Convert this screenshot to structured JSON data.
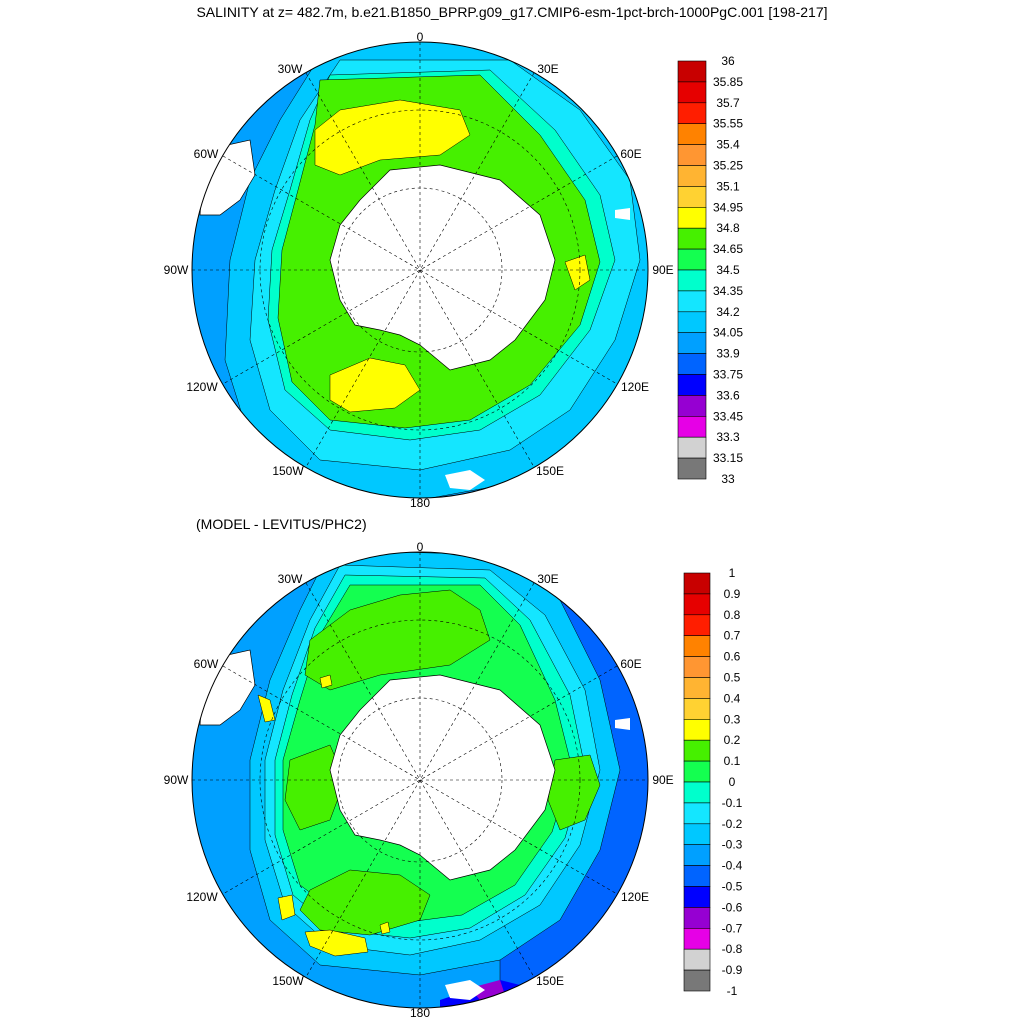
{
  "title": "SALINITY at z= 482.7m, b.e21.B1850_BPRP.g09_g17.CMIP6-esm-1pct-brch-1000PgC.001 [198-217]",
  "subtitle": "(MODEL - LEVITUS/PHC2)",
  "map_labels": {
    "lon_0": "0",
    "lon_30w": "30W",
    "lon_30e": "30E",
    "lon_60w": "60W",
    "lon_60e": "60E",
    "lon_90w": "90W",
    "lon_90e": "90E",
    "lon_120w": "120W",
    "lon_120e": "120E",
    "lon_150w": "150W",
    "lon_150e": "150E",
    "lon_180": "180"
  },
  "top_colorbar": {
    "labels": [
      "36",
      "35.85",
      "35.7",
      "35.55",
      "35.4",
      "35.25",
      "35.1",
      "34.95",
      "34.8",
      "34.65",
      "34.5",
      "34.35",
      "34.2",
      "34.05",
      "33.9",
      "33.75",
      "33.6",
      "33.45",
      "33.3",
      "33.15",
      "33"
    ],
    "colors": [
      "#c80000",
      "#e60000",
      "#ff1e00",
      "#ff8200",
      "#ff9632",
      "#ffb432",
      "#ffd232",
      "#ffff00",
      "#46f000",
      "#14ff50",
      "#00ffcc",
      "#14e6ff",
      "#00c8ff",
      "#00a0ff",
      "#0064ff",
      "#0000ff",
      "#9600d2",
      "#e600e6",
      "#d2d2d2",
      "#787878"
    ]
  },
  "bottom_colorbar": {
    "labels": [
      "1",
      "0.9",
      "0.8",
      "0.7",
      "0.6",
      "0.5",
      "0.4",
      "0.3",
      "0.2",
      "0.1",
      "0",
      "-0.1",
      "-0.2",
      "-0.3",
      "-0.4",
      "-0.5",
      "-0.6",
      "-0.7",
      "-0.8",
      "-0.9",
      "-1"
    ],
    "colors": [
      "#c80000",
      "#e60000",
      "#ff1e00",
      "#ff8200",
      "#ff9632",
      "#ffb432",
      "#ffd232",
      "#ffff00",
      "#46f000",
      "#14ff50",
      "#00ffcc",
      "#14e6ff",
      "#00c8ff",
      "#00a0ff",
      "#0064ff",
      "#0000ff",
      "#9600d2",
      "#e600e6",
      "#d2d2d2",
      "#787878"
    ]
  }
}
